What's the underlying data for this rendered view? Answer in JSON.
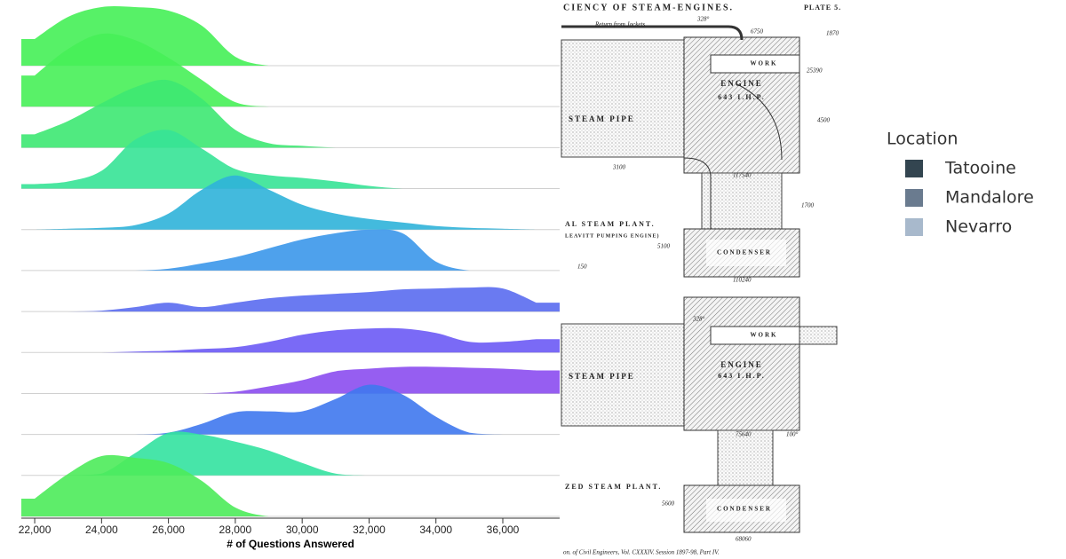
{
  "chart_data": {
    "type": "ridgeline",
    "x_label": "# of Questions Answered",
    "x": [
      22000,
      23000,
      24000,
      25000,
      26000,
      27000,
      28000,
      29000,
      30000,
      31000,
      32000,
      33000,
      34000,
      35000,
      36000,
      37000
    ],
    "xlim": [
      21600,
      37700
    ],
    "xticks": [
      {
        "value": 22000,
        "label": "22,000"
      },
      {
        "value": 24000,
        "label": "24,000"
      },
      {
        "value": 26000,
        "label": "26,000"
      },
      {
        "value": 28000,
        "label": "28,000"
      },
      {
        "value": 30000,
        "label": "30,000"
      },
      {
        "value": 32000,
        "label": "32,000"
      },
      {
        "value": 34000,
        "label": "34,000"
      },
      {
        "value": 36000,
        "label": "36,000"
      }
    ],
    "series": [
      {
        "color": "#45ef57",
        "values": [
          0.3,
          0.55,
          0.66,
          0.66,
          0.62,
          0.45,
          0.1,
          0,
          0,
          0,
          0,
          0,
          0,
          0,
          0,
          0
        ]
      },
      {
        "color": "#47ef58",
        "values": [
          0.35,
          0.65,
          0.82,
          0.75,
          0.55,
          0.3,
          0.05,
          0,
          0,
          0,
          0,
          0,
          0,
          0,
          0,
          0
        ]
      },
      {
        "color": "#3de872",
        "values": [
          0.15,
          0.3,
          0.5,
          0.68,
          0.76,
          0.55,
          0.2,
          0.05,
          0.02,
          0,
          0,
          0,
          0,
          0,
          0,
          0
        ]
      },
      {
        "color": "#36e396",
        "values": [
          0.05,
          0.08,
          0.2,
          0.55,
          0.66,
          0.45,
          0.22,
          0.15,
          0.12,
          0.08,
          0.03,
          0,
          0,
          0,
          0,
          0
        ]
      },
      {
        "color": "#2fb3d9",
        "values": [
          0,
          0.01,
          0.02,
          0.05,
          0.18,
          0.45,
          0.61,
          0.45,
          0.28,
          0.18,
          0.12,
          0.08,
          0.04,
          0.02,
          0.01,
          0
        ]
      },
      {
        "color": "#3b97ea",
        "values": [
          0,
          0,
          0,
          0,
          0.02,
          0.08,
          0.15,
          0.25,
          0.35,
          0.42,
          0.46,
          0.42,
          0.1,
          0,
          0,
          0
        ]
      },
      {
        "color": "#5a6cf0",
        "values": [
          0,
          0,
          0.01,
          0.05,
          0.1,
          0.05,
          0.1,
          0.15,
          0.18,
          0.2,
          0.22,
          0.25,
          0.26,
          0.27,
          0.26,
          0.1
        ]
      },
      {
        "color": "#6b5af5",
        "values": [
          0,
          0,
          0,
          0.01,
          0.02,
          0.04,
          0.06,
          0.12,
          0.2,
          0.25,
          0.27,
          0.27,
          0.22,
          0.12,
          0.12,
          0.15
        ]
      },
      {
        "color": "#8b4cf0",
        "values": [
          0,
          0,
          0,
          0,
          0,
          0,
          0.02,
          0.08,
          0.15,
          0.25,
          0.28,
          0.3,
          0.3,
          0.29,
          0.28,
          0.26
        ]
      },
      {
        "color": "#3f78ee",
        "values": [
          0,
          0,
          0,
          0,
          0.02,
          0.12,
          0.25,
          0.26,
          0.26,
          0.4,
          0.56,
          0.45,
          0.2,
          0.02,
          0,
          0
        ]
      },
      {
        "color": "#33e2a0",
        "values": [
          0,
          0,
          0.02,
          0.25,
          0.48,
          0.46,
          0.38,
          0.28,
          0.14,
          0.02,
          0,
          0,
          0,
          0,
          0,
          0
        ]
      },
      {
        "color": "#4ceb5a",
        "values": [
          0.2,
          0.48,
          0.68,
          0.66,
          0.6,
          0.4,
          0.1,
          0,
          0,
          0,
          0,
          0,
          0,
          0,
          0,
          0
        ]
      }
    ]
  },
  "diagram": {
    "title": "CIENCY OF STEAM-ENGINES.",
    "plate": "PLATE 5.",
    "upper": {
      "pipe": "STEAM PIPE",
      "engine": "ENGINE",
      "power": "643 I.H.P.",
      "work": "WORK",
      "condenser": "CONDENSER",
      "plant": "AL STEAM PLANT.",
      "subplant": "LEAVITT PUMPING ENGINE)",
      "return": "Return from Jackets",
      "n1": "6750",
      "n2": "1870",
      "n3": "25390",
      "n4": "4500",
      "n5": "3100",
      "n6": "1700",
      "n7": "5100",
      "n8": "150",
      "n9": "117540",
      "n10": "110240",
      "deg": "328°"
    },
    "lower": {
      "pipe": "STEAM PIPE",
      "engine": "ENGINE",
      "power": "643 I.H.P.",
      "work": "WORK",
      "condenser": "CONDENSER",
      "plant": "ZED STEAM PLANT.",
      "n1": "5600",
      "n2": "75640",
      "n3": "68060",
      "deg": "328°",
      "deg2": "100°"
    },
    "footer": "on. of Civil Engineers, Vol. CXXXIV. Session 1897-98, Part IV."
  },
  "legend": {
    "title": "Location",
    "items": [
      {
        "label": "Tatooine",
        "color": "#334550"
      },
      {
        "label": "Mandalore",
        "color": "#6a7b8f"
      },
      {
        "label": "Nevarro",
        "color": "#a8b9cc"
      }
    ]
  }
}
